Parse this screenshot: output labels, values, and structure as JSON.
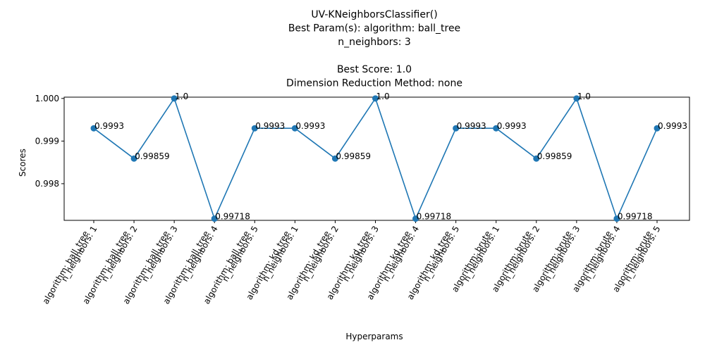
{
  "chart_data": {
    "type": "line",
    "title_lines": [
      "UV-KNeighborsClassifier()",
      "Best Param(s): algorithm: ball_tree",
      "n_neighbors: 3",
      "",
      "Best Score: 1.0",
      "Dimension Reduction Method: none"
    ],
    "xlabel": "Hyperparams",
    "ylabel": "Scores",
    "ylim": [
      0.99714,
      1.00003
    ],
    "yticks": [
      0.998,
      0.999,
      1.0
    ],
    "ytick_labels": [
      "0.998",
      "0.999",
      "1.000"
    ],
    "grid": false,
    "line_color": "#1f77b4",
    "categories": [
      [
        "algorithm: ball_tree",
        "n_neighbors: 1"
      ],
      [
        "algorithm: ball_tree",
        "n_neighbors: 2"
      ],
      [
        "algorithm: ball_tree",
        "n_neighbors: 3"
      ],
      [
        "algorithm: ball_tree",
        "n_neighbors: 4"
      ],
      [
        "algorithm: ball_tree",
        "n_neighbors: 5"
      ],
      [
        "algorithm: kd_tree",
        "n_neighbors: 1"
      ],
      [
        "algorithm: kd_tree",
        "n_neighbors: 2"
      ],
      [
        "algorithm: kd_tree",
        "n_neighbors: 3"
      ],
      [
        "algorithm: kd_tree",
        "n_neighbors: 4"
      ],
      [
        "algorithm: kd_tree",
        "n_neighbors: 5"
      ],
      [
        "algorithm: brute",
        "n_neighbors: 1"
      ],
      [
        "algorithm: brute",
        "n_neighbors: 2"
      ],
      [
        "algorithm: brute",
        "n_neighbors: 3"
      ],
      [
        "algorithm: brute",
        "n_neighbors: 4"
      ],
      [
        "algorithm: brute",
        "n_neighbors: 5"
      ]
    ],
    "values": [
      0.9993,
      0.99859,
      1.0,
      0.99718,
      0.9993,
      0.9993,
      0.99859,
      1.0,
      0.99718,
      0.9993,
      0.9993,
      0.99859,
      1.0,
      0.99718,
      0.9993
    ],
    "value_labels": [
      "0.9993",
      "0.99859",
      "1.0",
      "0.99718",
      "0.9993",
      "0.9993",
      "0.99859",
      "1.0",
      "0.99718",
      "0.9993",
      "0.9993",
      "0.99859",
      "1.0",
      "0.99718",
      "0.9993"
    ]
  }
}
